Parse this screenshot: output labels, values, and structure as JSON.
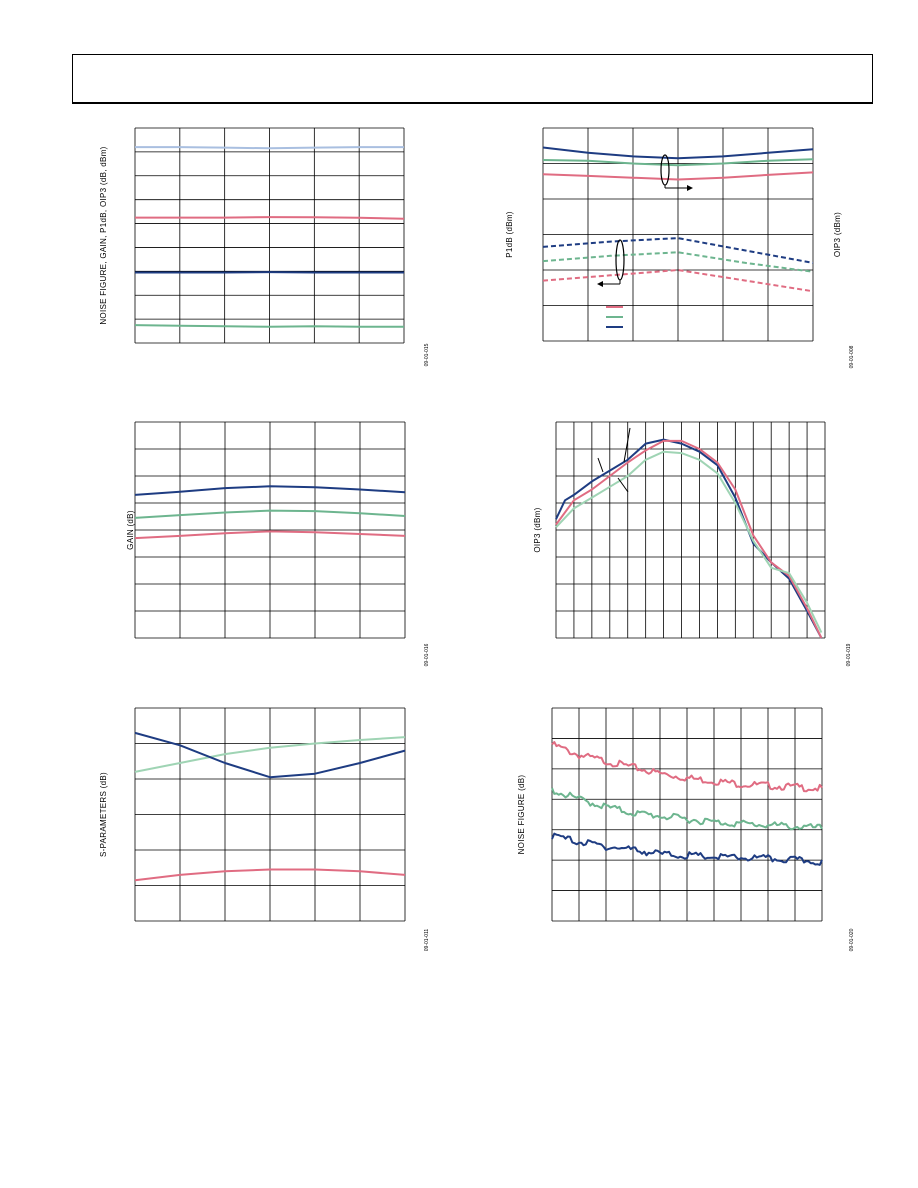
{
  "page": {
    "header_text": ""
  },
  "colors": {
    "pink": "#e06c82",
    "green": "#6db58f",
    "navy": "#1e3c82",
    "lightblue": "#a9bfe0",
    "lightgreen": "#9fd4b4",
    "grid": "#000000"
  },
  "chart_data": [
    {
      "id": "c1",
      "type": "line",
      "ylabel": "NOISE FIGURE, GAIN, P1dB, OIP3 (dB, dBm)",
      "fig_id": "09-01-015",
      "cols": 6,
      "rows": 9,
      "xlim": [
        0,
        6
      ],
      "ylim": [
        0,
        9
      ],
      "series": [
        {
          "color": "lightblue",
          "dash": false,
          "points": [
            [
              0,
              8.2
            ],
            [
              1,
              8.2
            ],
            [
              2,
              8.18
            ],
            [
              3,
              8.15
            ],
            [
              4,
              8.18
            ],
            [
              5,
              8.2
            ],
            [
              6,
              8.2
            ]
          ]
        },
        {
          "color": "pink",
          "dash": false,
          "points": [
            [
              0,
              5.25
            ],
            [
              2,
              5.25
            ],
            [
              3,
              5.27
            ],
            [
              4,
              5.26
            ],
            [
              5,
              5.24
            ],
            [
              6,
              5.2
            ]
          ]
        },
        {
          "color": "navy",
          "dash": false,
          "points": [
            [
              0,
              2.95
            ],
            [
              2,
              2.95
            ],
            [
              3,
              2.97
            ],
            [
              4,
              2.95
            ],
            [
              5,
              2.95
            ],
            [
              6,
              2.95
            ]
          ]
        },
        {
          "color": "green",
          "dash": false,
          "points": [
            [
              0,
              0.75
            ],
            [
              1,
              0.72
            ],
            [
              2,
              0.7
            ],
            [
              3,
              0.68
            ],
            [
              4,
              0.7
            ],
            [
              5,
              0.68
            ],
            [
              6,
              0.68
            ]
          ]
        }
      ]
    },
    {
      "id": "c2",
      "type": "line",
      "ylabel": "P1dB (dBm)",
      "ylabel_right": "OIP3 (dBm)",
      "fig_id": "09-01-008",
      "cols": 6,
      "rows": 6,
      "xlim": [
        0,
        6
      ],
      "ylim": [
        0,
        6
      ],
      "series": [
        {
          "color": "navy",
          "dash": false,
          "points": [
            [
              0,
              5.45
            ],
            [
              1,
              5.3
            ],
            [
              2,
              5.2
            ],
            [
              3,
              5.15
            ],
            [
              4,
              5.2
            ],
            [
              5,
              5.3
            ],
            [
              6,
              5.4
            ]
          ]
        },
        {
          "color": "green",
          "dash": false,
          "points": [
            [
              0,
              5.1
            ],
            [
              1,
              5.08
            ],
            [
              2,
              5.0
            ],
            [
              3,
              4.95
            ],
            [
              4,
              5.0
            ],
            [
              5,
              5.08
            ],
            [
              6,
              5.12
            ]
          ]
        },
        {
          "color": "pink",
          "dash": false,
          "points": [
            [
              0,
              4.7
            ],
            [
              1,
              4.65
            ],
            [
              2,
              4.6
            ],
            [
              3,
              4.55
            ],
            [
              4,
              4.6
            ],
            [
              5,
              4.68
            ],
            [
              6,
              4.75
            ]
          ]
        },
        {
          "color": "navy",
          "dash": true,
          "points": [
            [
              0,
              2.65
            ],
            [
              1.5,
              2.8
            ],
            [
              3,
              2.9
            ],
            [
              4.5,
              2.55
            ],
            [
              6,
              2.2
            ]
          ]
        },
        {
          "color": "green",
          "dash": true,
          "points": [
            [
              0,
              2.25
            ],
            [
              1.5,
              2.4
            ],
            [
              3,
              2.5
            ],
            [
              4.5,
              2.2
            ],
            [
              6,
              1.95
            ]
          ]
        },
        {
          "color": "pink",
          "dash": true,
          "points": [
            [
              0,
              1.7
            ],
            [
              1.5,
              1.85
            ],
            [
              3,
              2.0
            ],
            [
              4.5,
              1.7
            ],
            [
              6,
              1.4
            ]
          ]
        }
      ],
      "legend_colors": [
        "pink",
        "green",
        "navy"
      ]
    },
    {
      "id": "c3",
      "type": "line",
      "ylabel": "GAIN (dB)",
      "fig_id": "09-01-016",
      "cols": 6,
      "rows": 8,
      "xlim": [
        0,
        6
      ],
      "ylim": [
        0,
        8
      ],
      "series": [
        {
          "color": "navy",
          "dash": false,
          "points": [
            [
              0,
              5.3
            ],
            [
              1,
              5.42
            ],
            [
              2,
              5.55
            ],
            [
              3,
              5.62
            ],
            [
              4,
              5.58
            ],
            [
              5,
              5.5
            ],
            [
              6,
              5.4
            ]
          ]
        },
        {
          "color": "green",
          "dash": false,
          "points": [
            [
              0,
              4.45
            ],
            [
              1,
              4.55
            ],
            [
              2,
              4.65
            ],
            [
              3,
              4.72
            ],
            [
              4,
              4.7
            ],
            [
              5,
              4.62
            ],
            [
              6,
              4.52
            ]
          ]
        },
        {
          "color": "pink",
          "dash": false,
          "points": [
            [
              0,
              3.7
            ],
            [
              1,
              3.78
            ],
            [
              2,
              3.88
            ],
            [
              3,
              3.95
            ],
            [
              4,
              3.92
            ],
            [
              5,
              3.85
            ],
            [
              6,
              3.78
            ]
          ]
        }
      ]
    },
    {
      "id": "c4",
      "type": "line",
      "ylabel": "OIP3  (dBm)",
      "fig_id": "09-01-019",
      "cols": 15,
      "rows": 8,
      "xlim": [
        0,
        15
      ],
      "ylim": [
        0,
        8
      ],
      "series": [
        {
          "color": "navy",
          "dash": false,
          "points": [
            [
              0,
              4.4
            ],
            [
              0.5,
              5.1
            ],
            [
              1,
              5.3
            ],
            [
              2,
              5.8
            ],
            [
              3,
              6.2
            ],
            [
              4,
              6.6
            ],
            [
              5,
              7.2
            ],
            [
              6,
              7.35
            ],
            [
              7,
              7.2
            ],
            [
              8,
              6.9
            ],
            [
              9,
              6.4
            ],
            [
              10,
              5.2
            ],
            [
              11,
              3.5
            ],
            [
              12,
              2.8
            ],
            [
              13,
              2.2
            ],
            [
              14,
              1.0
            ],
            [
              14.8,
              0
            ]
          ]
        },
        {
          "color": "pink",
          "dash": false,
          "points": [
            [
              0,
              4.2
            ],
            [
              1,
              5.1
            ],
            [
              2,
              5.5
            ],
            [
              3,
              6.0
            ],
            [
              4,
              6.5
            ],
            [
              5,
              6.95
            ],
            [
              6,
              7.3
            ],
            [
              7,
              7.3
            ],
            [
              8,
              7.0
            ],
            [
              9,
              6.5
            ],
            [
              10,
              5.5
            ],
            [
              11,
              3.8
            ],
            [
              12,
              2.8
            ],
            [
              13,
              2.3
            ],
            [
              14,
              1.1
            ],
            [
              14.8,
              0
            ]
          ]
        },
        {
          "color": "lightgreen",
          "dash": false,
          "points": [
            [
              0,
              4.1
            ],
            [
              1,
              4.8
            ],
            [
              2,
              5.2
            ],
            [
              3,
              5.6
            ],
            [
              4,
              6.0
            ],
            [
              5,
              6.6
            ],
            [
              6,
              6.9
            ],
            [
              7,
              6.85
            ],
            [
              8,
              6.6
            ],
            [
              9,
              6.1
            ],
            [
              10,
              5.0
            ],
            [
              11,
              3.6
            ],
            [
              12,
              2.6
            ],
            [
              13,
              2.4
            ],
            [
              14,
              1.3
            ],
            [
              14.8,
              0.2
            ]
          ]
        }
      ]
    },
    {
      "id": "c5",
      "type": "line",
      "ylabel": "S-PARAMETERS (dB)",
      "fig_id": "09-01-011",
      "cols": 6,
      "rows": 6,
      "xlim": [
        0,
        6
      ],
      "ylim": [
        0,
        6
      ],
      "series": [
        {
          "color": "lightgreen",
          "dash": false,
          "points": [
            [
              0,
              4.2
            ],
            [
              1,
              4.45
            ],
            [
              2,
              4.7
            ],
            [
              3,
              4.88
            ],
            [
              4,
              5.0
            ],
            [
              5,
              5.1
            ],
            [
              6,
              5.18
            ]
          ]
        },
        {
          "color": "navy",
          "dash": false,
          "points": [
            [
              0,
              5.3
            ],
            [
              1,
              4.95
            ],
            [
              2,
              4.45
            ],
            [
              3,
              4.05
            ],
            [
              4,
              4.15
            ],
            [
              5,
              4.45
            ],
            [
              6,
              4.8
            ]
          ]
        },
        {
          "color": "pink",
          "dash": false,
          "points": [
            [
              0,
              1.15
            ],
            [
              1,
              1.3
            ],
            [
              2,
              1.4
            ],
            [
              3,
              1.45
            ],
            [
              4,
              1.45
            ],
            [
              5,
              1.4
            ],
            [
              6,
              1.3
            ]
          ]
        }
      ]
    },
    {
      "id": "c6",
      "type": "line",
      "ylabel": "NOISE FIGURE (dB)",
      "fig_id": "09-01-020",
      "cols": 10,
      "rows": 7,
      "xlim": [
        0,
        10
      ],
      "ylim": [
        0,
        7
      ],
      "series": [
        {
          "color": "pink",
          "dash": false,
          "noisy": true,
          "points": [
            [
              0,
              5.8
            ],
            [
              1,
              5.45
            ],
            [
              2,
              5.25
            ],
            [
              3,
              5.05
            ],
            [
              4,
              4.85
            ],
            [
              5,
              4.7
            ],
            [
              6,
              4.6
            ],
            [
              7,
              4.5
            ],
            [
              8,
              4.45
            ],
            [
              9,
              4.4
            ],
            [
              10,
              4.35
            ]
          ]
        },
        {
          "color": "green",
          "dash": false,
          "noisy": true,
          "points": [
            [
              0,
              4.3
            ],
            [
              1,
              4.0
            ],
            [
              2,
              3.75
            ],
            [
              3,
              3.55
            ],
            [
              4,
              3.45
            ],
            [
              5,
              3.35
            ],
            [
              6,
              3.25
            ],
            [
              7,
              3.2
            ],
            [
              8,
              3.15
            ],
            [
              9,
              3.1
            ],
            [
              10,
              3.05
            ]
          ]
        },
        {
          "color": "navy",
          "dash": false,
          "noisy": true,
          "points": [
            [
              0,
              2.8
            ],
            [
              1,
              2.6
            ],
            [
              2,
              2.45
            ],
            [
              3,
              2.35
            ],
            [
              4,
              2.2
            ],
            [
              5,
              2.15
            ],
            [
              6,
              2.1
            ],
            [
              7,
              2.08
            ],
            [
              8,
              2.05
            ],
            [
              9,
              2.0
            ],
            [
              10,
              1.95
            ]
          ]
        }
      ]
    }
  ]
}
